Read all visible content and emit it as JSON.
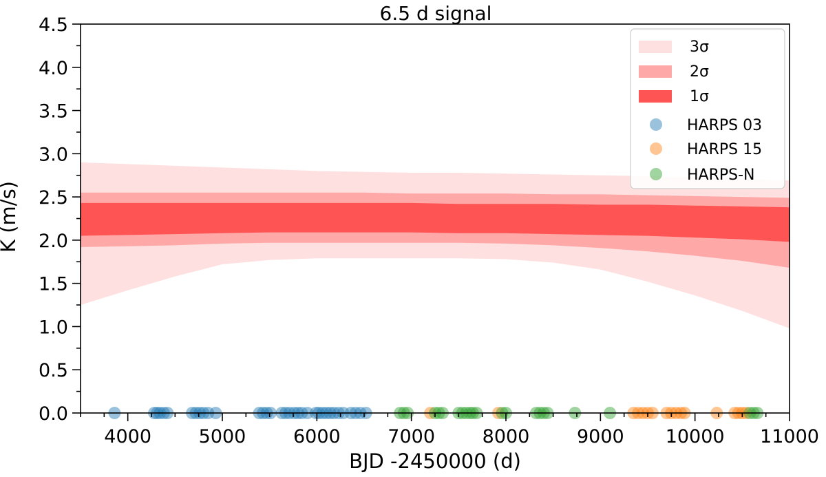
{
  "chart_data": {
    "type": "area",
    "title": "6.5 d signal",
    "xlabel": "BJD -2450000 (d)",
    "ylabel": "K (m/s)",
    "xlim": [
      3500,
      11000
    ],
    "ylim": [
      0.0,
      4.5
    ],
    "x_ticks": [
      4000,
      5000,
      6000,
      7000,
      8000,
      9000,
      10000,
      11000
    ],
    "x_tick_labels": [
      "4000",
      "5000",
      "6000",
      "7000",
      "8000",
      "9000",
      "10000",
      "11000"
    ],
    "y_ticks": [
      0.0,
      0.5,
      1.0,
      1.5,
      2.0,
      2.5,
      3.0,
      3.5,
      4.0,
      4.5
    ],
    "y_tick_labels": [
      "0.0",
      "0.5",
      "1.0",
      "1.5",
      "2.0",
      "2.5",
      "3.0",
      "3.5",
      "4.0",
      "4.5"
    ],
    "grid": false,
    "legend_position": "top-right",
    "bands": [
      {
        "name": "3σ",
        "color": "#ffe0e0",
        "x": [
          3500,
          4000,
          4500,
          5000,
          5500,
          6000,
          6500,
          7000,
          7500,
          8000,
          8500,
          9000,
          9500,
          10000,
          10500,
          11000
        ],
        "upper": [
          2.9,
          2.88,
          2.86,
          2.84,
          2.82,
          2.8,
          2.79,
          2.78,
          2.78,
          2.77,
          2.76,
          2.75,
          2.74,
          2.73,
          2.71,
          2.69
        ],
        "lower": [
          1.25,
          1.42,
          1.58,
          1.72,
          1.77,
          1.79,
          1.79,
          1.79,
          1.79,
          1.78,
          1.74,
          1.66,
          1.52,
          1.36,
          1.18,
          0.98
        ]
      },
      {
        "name": "2σ",
        "color": "#ffa8a8",
        "x": [
          3500,
          4000,
          4500,
          5000,
          5500,
          6000,
          6500,
          7000,
          7500,
          8000,
          8500,
          9000,
          9500,
          10000,
          10500,
          11000
        ],
        "upper": [
          2.55,
          2.55,
          2.55,
          2.55,
          2.55,
          2.55,
          2.55,
          2.54,
          2.54,
          2.54,
          2.53,
          2.53,
          2.52,
          2.51,
          2.5,
          2.49
        ],
        "lower": [
          1.92,
          1.93,
          1.94,
          1.96,
          1.97,
          1.97,
          1.97,
          1.97,
          1.97,
          1.96,
          1.94,
          1.91,
          1.87,
          1.82,
          1.76,
          1.68
        ]
      },
      {
        "name": "1σ",
        "color": "#ff5454",
        "x": [
          3500,
          4000,
          4500,
          5000,
          5500,
          6000,
          6500,
          7000,
          7500,
          8000,
          8500,
          9000,
          9500,
          10000,
          10500,
          11000
        ],
        "upper": [
          2.43,
          2.43,
          2.43,
          2.43,
          2.43,
          2.43,
          2.43,
          2.43,
          2.42,
          2.42,
          2.42,
          2.41,
          2.41,
          2.4,
          2.39,
          2.38
        ],
        "lower": [
          2.05,
          2.06,
          2.07,
          2.08,
          2.09,
          2.09,
          2.09,
          2.09,
          2.08,
          2.08,
          2.07,
          2.06,
          2.05,
          2.03,
          2.01,
          1.98
        ]
      }
    ],
    "series": [
      {
        "name": "HARPS 03",
        "color": "#1f77b4",
        "y": 0.0,
        "x": [
          3860,
          4280,
          4310,
          4340,
          4380,
          4420,
          4680,
          4720,
          4760,
          4800,
          4850,
          4930,
          5390,
          5430,
          5470,
          5510,
          5630,
          5670,
          5710,
          5760,
          5800,
          5840,
          5900,
          5990,
          6020,
          6060,
          6100,
          6140,
          6180,
          6230,
          6280,
          6360,
          6410,
          6460,
          6520
        ]
      },
      {
        "name": "HARPS 15",
        "color": "#ff7f0e",
        "y": 0.0,
        "x": [
          7200,
          7920,
          9350,
          9400,
          9450,
          9500,
          9550,
          9700,
          9750,
          9800,
          9850,
          9890,
          10230,
          10420,
          10460,
          10500,
          10540
        ]
      },
      {
        "name": "HARPS-N",
        "color": "#2ca02c",
        "y": 0.0,
        "x": [
          6880,
          6920,
          6960,
          7250,
          7290,
          7330,
          7500,
          7540,
          7580,
          7620,
          7650,
          7690,
          7960,
          8000,
          8320,
          8360,
          8400,
          8440,
          8730,
          9100,
          10580,
          10620,
          10660
        ]
      }
    ]
  }
}
